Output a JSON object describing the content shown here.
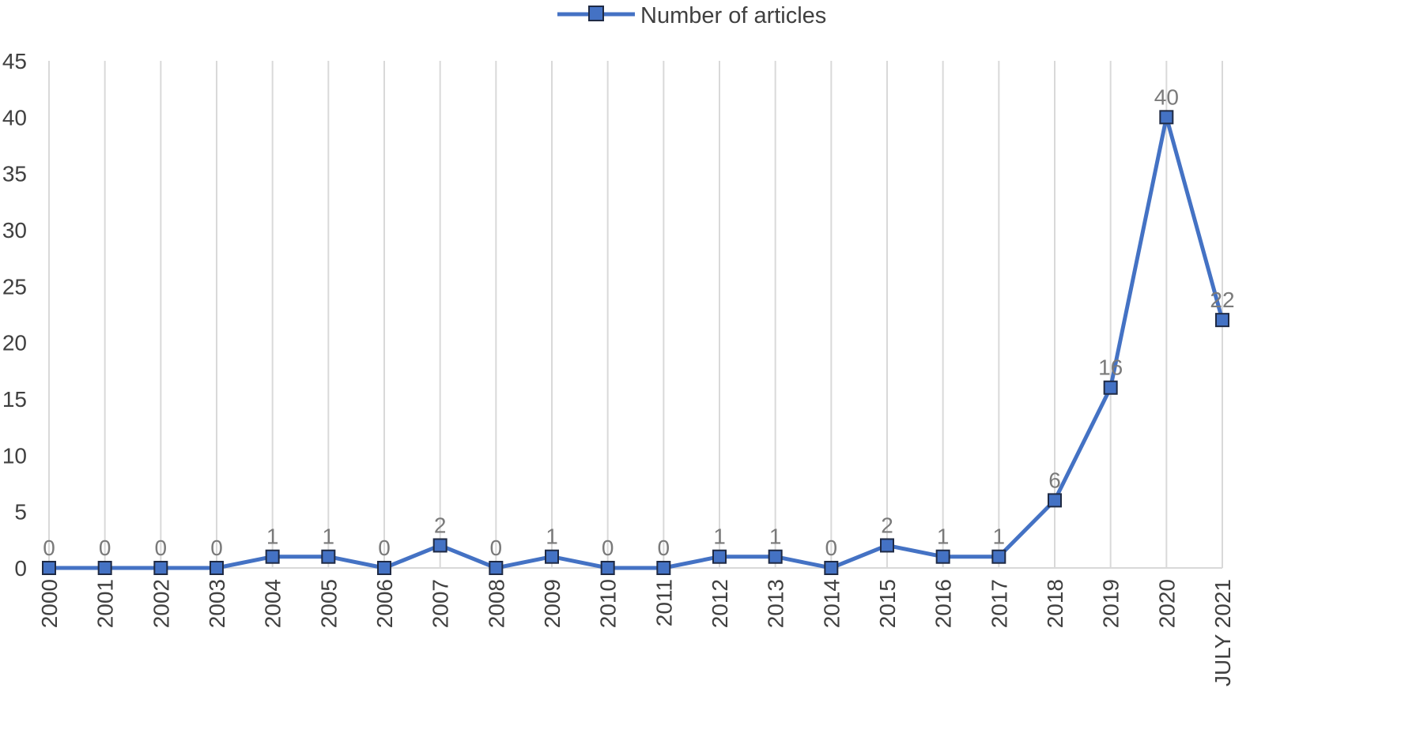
{
  "chart_data": {
    "type": "line",
    "categories": [
      "2000",
      "2001",
      "2002",
      "2003",
      "2004",
      "2005",
      "2006",
      "2007",
      "2008",
      "2009",
      "2010",
      "2011",
      "2012",
      "2013",
      "2014",
      "2015",
      "2016",
      "2017",
      "2018",
      "2019",
      "2020",
      "JULY 2021"
    ],
    "series": [
      {
        "name": "Number of articles",
        "values": [
          0,
          0,
          0,
          0,
          1,
          1,
          0,
          2,
          0,
          1,
          0,
          0,
          1,
          1,
          0,
          2,
          1,
          1,
          6,
          16,
          40,
          22
        ],
        "color": "#4472C4",
        "marker": "square",
        "marker_edge_color": "#1F2A44"
      }
    ],
    "y_ticks": [
      0,
      5,
      10,
      15,
      20,
      25,
      30,
      35,
      40,
      45
    ],
    "ylim": [
      0,
      45
    ],
    "grid": "vertical",
    "grid_color": "#D9D9D9",
    "legend": "top-center",
    "data_labels": true,
    "x_label_rotation": "vertical"
  }
}
